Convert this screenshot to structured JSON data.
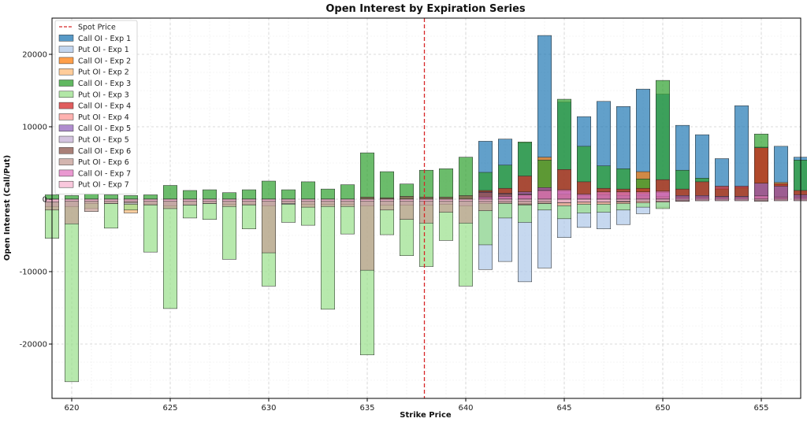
{
  "chart_data": {
    "type": "bar",
    "title": "Open Interest by Expiration Series",
    "xlabel": "Strike Price",
    "ylabel": "Open Interest (Call/Put)",
    "xlim": [
      619,
      657
    ],
    "ylim": [
      -27500,
      25000
    ],
    "xticks": [
      620,
      625,
      630,
      635,
      640,
      645,
      650,
      655
    ],
    "yticks": [
      -20000,
      -10000,
      0,
      10000,
      20000
    ],
    "grid": true,
    "legend_position": "top-left",
    "spot_price": {
      "label": "Spot Price",
      "value": 637.9,
      "color": "#d62728"
    },
    "strikes": [
      619,
      620,
      621,
      622,
      623,
      624,
      625,
      626,
      627,
      628,
      629,
      630,
      631,
      632,
      633,
      634,
      635,
      636,
      637,
      638,
      639,
      640,
      641,
      642,
      643,
      644,
      645,
      646,
      647,
      648,
      649,
      650,
      651,
      652,
      653,
      654,
      655,
      656,
      657
    ],
    "series": [
      {
        "name": "Call OI - Exp 1",
        "side": "call",
        "color": "#1f77b4",
        "values": [
          0,
          0,
          0,
          0,
          0,
          0,
          0,
          0,
          0,
          0,
          0,
          0,
          0,
          0,
          0,
          0,
          0,
          0,
          0,
          0,
          0,
          0,
          8000,
          8300,
          7800,
          22600,
          13400,
          11400,
          13500,
          12800,
          15200,
          14500,
          10200,
          8900,
          5600,
          12900,
          7200,
          7300,
          5800
        ]
      },
      {
        "name": "Put OI - Exp 1",
        "side": "put",
        "color": "#aec7e8",
        "values": [
          0,
          0,
          0,
          0,
          0,
          0,
          0,
          0,
          0,
          0,
          0,
          0,
          0,
          0,
          0,
          0,
          0,
          0,
          0,
          0,
          0,
          0,
          -9700,
          -8600,
          -11400,
          -9500,
          -5300,
          -3900,
          -4100,
          -3500,
          -2000,
          -1100,
          -300,
          -200,
          -100,
          -100,
          -100,
          -100,
          -100
        ]
      },
      {
        "name": "Call OI - Exp 2",
        "side": "call",
        "color": "#ff7f0e",
        "values": [
          0,
          0,
          0,
          0,
          0,
          0,
          0,
          0,
          0,
          0,
          0,
          0,
          0,
          0,
          0,
          0,
          0,
          0,
          0,
          0,
          0,
          0,
          0,
          0,
          0,
          5800,
          0,
          0,
          0,
          0,
          3800,
          0,
          0,
          0,
          0,
          0,
          7100,
          2300,
          0
        ]
      },
      {
        "name": "Put OI - Exp 2",
        "side": "put",
        "color": "#ffbb78",
        "values": [
          0,
          0,
          0,
          0,
          -1900,
          0,
          0,
          0,
          0,
          0,
          0,
          0,
          0,
          0,
          0,
          0,
          0,
          0,
          0,
          0,
          0,
          0,
          0,
          0,
          0,
          0,
          0,
          0,
          0,
          0,
          0,
          0,
          0,
          0,
          0,
          0,
          0,
          0,
          0
        ]
      },
      {
        "name": "Call OI - Exp 3",
        "side": "call",
        "color": "#2ca02c",
        "values": [
          600,
          500,
          700,
          600,
          500,
          600,
          1900,
          1200,
          1300,
          900,
          1300,
          2500,
          1300,
          2400,
          1400,
          2000,
          6400,
          3800,
          2100,
          4000,
          4200,
          5800,
          3700,
          4700,
          7900,
          5400,
          13800,
          7300,
          4600,
          4200,
          2800,
          16400,
          4000,
          2900,
          1400,
          1600,
          9000,
          2000,
          5400
        ]
      },
      {
        "name": "Put OI - Exp 3",
        "side": "put",
        "color": "#98df8a",
        "values": [
          -5400,
          -25200,
          -1300,
          -4000,
          -1500,
          -7300,
          -15100,
          -2600,
          -2800,
          -8300,
          -4100,
          -12000,
          -3200,
          -3600,
          -15200,
          -4800,
          -21500,
          -4900,
          -7800,
          -9300,
          -5700,
          -12000,
          -6300,
          -2600,
          -3200,
          -1500,
          -2700,
          -1900,
          -1800,
          -1500,
          -1100,
          -1300,
          0,
          0,
          0,
          0,
          0,
          0,
          0
        ]
      },
      {
        "name": "Call OI - Exp 4",
        "side": "call",
        "color": "#d62728",
        "values": [
          0,
          0,
          0,
          0,
          0,
          0,
          0,
          0,
          0,
          0,
          0,
          0,
          0,
          0,
          0,
          0,
          0,
          0,
          0,
          0,
          0,
          0,
          1200,
          1500,
          3200,
          1600,
          4100,
          2400,
          1500,
          1400,
          1500,
          2700,
          1400,
          2400,
          1800,
          1800,
          7100,
          2100,
          1200
        ]
      },
      {
        "name": "Put OI - Exp 4",
        "side": "put",
        "color": "#ff9896",
        "values": [
          0,
          0,
          0,
          0,
          0,
          0,
          0,
          0,
          0,
          0,
          0,
          0,
          0,
          0,
          0,
          0,
          0,
          0,
          0,
          0,
          0,
          0,
          -500,
          -500,
          -800,
          -600,
          -900,
          -700,
          -700,
          -600,
          -500,
          -400,
          -300,
          -200,
          -200,
          -200,
          -200,
          -200,
          -200
        ]
      },
      {
        "name": "Call OI - Exp 5",
        "side": "call",
        "color": "#9467bd",
        "values": [
          0,
          0,
          0,
          0,
          0,
          0,
          0,
          0,
          0,
          0,
          0,
          0,
          0,
          0,
          0,
          0,
          0,
          0,
          0,
          0,
          0,
          0,
          1000,
          800,
          1000,
          1600,
          1100,
          600,
          600,
          500,
          700,
          900,
          500,
          500,
          400,
          400,
          2200,
          1800,
          600
        ]
      },
      {
        "name": "Put OI - Exp 5",
        "side": "put",
        "color": "#c5b0d5",
        "values": [
          -1000,
          -1000,
          -600,
          -600,
          -700,
          -700,
          -900,
          -800,
          -600,
          -700,
          -700,
          -900,
          -700,
          -700,
          -700,
          -700,
          -900,
          -800,
          -800,
          -800,
          -700,
          -900,
          -600,
          -500,
          -600,
          -500,
          -400,
          -400,
          -400,
          -400,
          -300,
          -300,
          -200,
          -200,
          -200,
          -200,
          -200,
          -200,
          -200
        ]
      },
      {
        "name": "Call OI - Exp 6",
        "side": "call",
        "color": "#8c564b",
        "values": [
          0,
          0,
          0,
          0,
          0,
          0,
          0,
          0,
          0,
          0,
          0,
          0,
          0,
          0,
          0,
          0,
          300,
          200,
          400,
          300,
          300,
          500,
          900,
          700,
          700,
          1200,
          700,
          500,
          600,
          500,
          500,
          400,
          300,
          300,
          300,
          300,
          400,
          300,
          300
        ]
      },
      {
        "name": "Put OI - Exp 6",
        "side": "put",
        "color": "#c49c94",
        "values": [
          -1500,
          -3400,
          -1700,
          -600,
          -500,
          -800,
          -1300,
          -800,
          -600,
          -1000,
          -800,
          -7400,
          -600,
          -1100,
          -1000,
          -1000,
          -9800,
          -1500,
          -2800,
          -3300,
          -1800,
          -3300,
          -1600,
          -600,
          -700,
          -600,
          -500,
          -400,
          -400,
          -400,
          -300,
          -300,
          -200,
          -200,
          -200,
          -200,
          -300,
          -200,
          -200
        ]
      },
      {
        "name": "Call OI - Exp 7",
        "side": "call",
        "color": "#e377c2",
        "values": [
          0,
          0,
          0,
          0,
          0,
          0,
          0,
          0,
          0,
          0,
          0,
          0,
          0,
          0,
          0,
          0,
          0,
          0,
          0,
          0,
          0,
          0,
          300,
          400,
          600,
          1200,
          1300,
          700,
          1000,
          1000,
          1000,
          1100,
          300,
          300,
          300,
          300,
          500,
          300,
          300
        ]
      },
      {
        "name": "Put OI - Exp 7",
        "side": "put",
        "color": "#f7b6d2",
        "values": [
          -400,
          -300,
          -300,
          -300,
          -300,
          -300,
          -300,
          -300,
          -300,
          -300,
          -300,
          -300,
          -300,
          -300,
          -300,
          -300,
          -300,
          -300,
          -300,
          -300,
          -300,
          -300,
          -300,
          -300,
          -300,
          -300,
          -500,
          -400,
          -400,
          -300,
          -300,
          -300,
          -200,
          -200,
          -200,
          -200,
          -200,
          -200,
          -200
        ]
      }
    ]
  }
}
